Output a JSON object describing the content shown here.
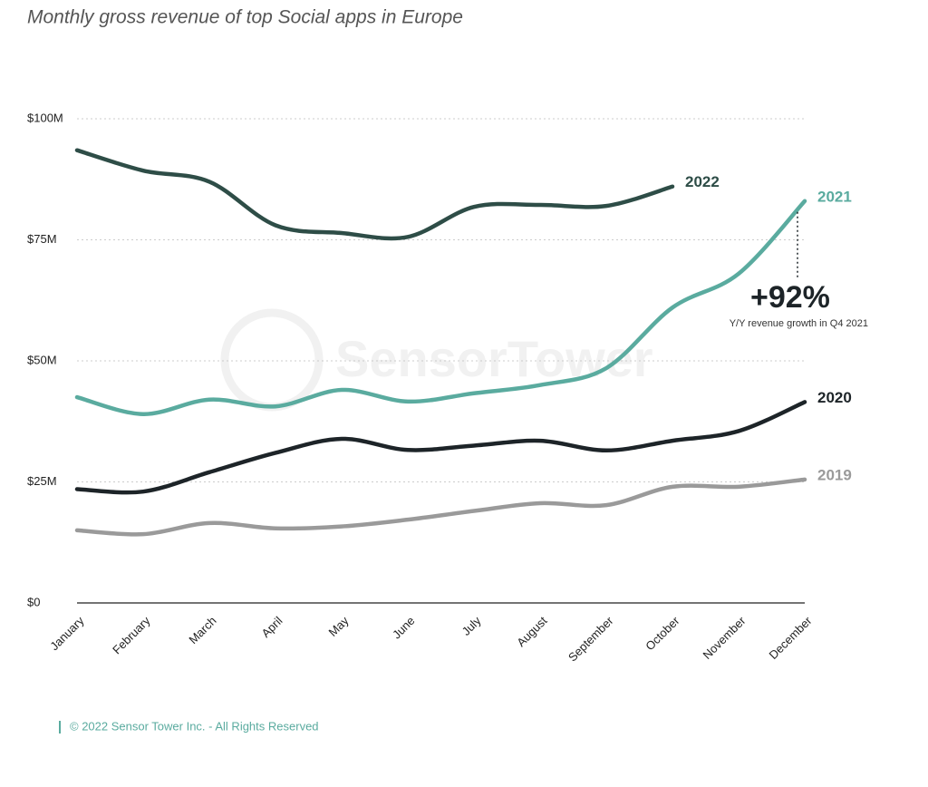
{
  "chart_data": {
    "type": "line",
    "title": "Monthly gross revenue of top Social apps in Europe",
    "watermark": "SensorTower",
    "categories": [
      "January",
      "February",
      "March",
      "April",
      "May",
      "June",
      "July",
      "August",
      "September",
      "October",
      "November",
      "December"
    ],
    "series": [
      {
        "name": "2022",
        "color": "#2e4d47",
        "values": [
          93.5,
          89.3,
          87,
          78,
          76.4,
          75.6,
          81.8,
          82.2,
          82,
          86,
          null,
          null
        ]
      },
      {
        "name": "2021",
        "color": "#5aab9f",
        "values": [
          42.5,
          39,
          42,
          40.6,
          44,
          41.6,
          43.3,
          45,
          48.5,
          61,
          68,
          83
        ]
      },
      {
        "name": "2020",
        "color": "#1d2428",
        "values": [
          23.5,
          23,
          27,
          31,
          33.9,
          31.6,
          32.5,
          33.5,
          31.5,
          33.5,
          35.5,
          41.5
        ]
      },
      {
        "name": "2019",
        "color": "#9a9a9a",
        "values": [
          15,
          14.2,
          16.5,
          15.4,
          15.8,
          17.2,
          19,
          20.6,
          20.2,
          24,
          24,
          25.5
        ]
      }
    ],
    "ylim": [
      0,
      100
    ],
    "yticks": [
      {
        "value": 0,
        "label": "$0"
      },
      {
        "value": 25,
        "label": "$25M"
      },
      {
        "value": 50,
        "label": "$50M"
      },
      {
        "value": 75,
        "label": "$75M"
      },
      {
        "value": 100,
        "label": "$100M"
      }
    ],
    "grid": true,
    "annotation": {
      "text": "+92%",
      "subtext": "Y/Y revenue growth in Q4 2021"
    },
    "footer": "© 2022 Sensor Tower Inc. - All Rights Reserved"
  }
}
